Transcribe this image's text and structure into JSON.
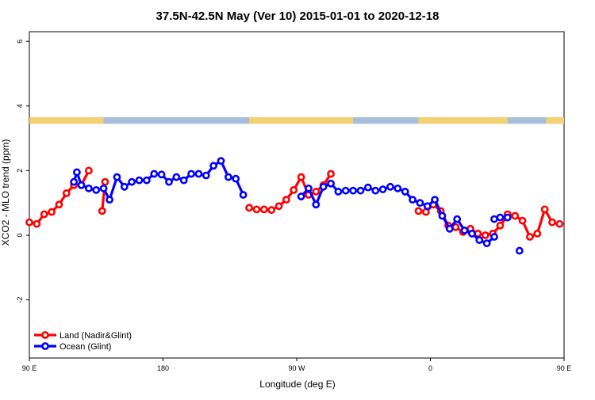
{
  "chart_data": {
    "type": "line",
    "title": "37.5N-42.5N May (Ver 10)   2015-01-01 to 2020-12-18",
    "xlabel": "Longitude (deg E)",
    "ylabel": "XCO2 - MLO trend (ppm)",
    "xlim": [
      90,
      450
    ],
    "ylim": [
      -3.8,
      6.3
    ],
    "x_ticks": [
      {
        "value": 90,
        "label": "90 E"
      },
      {
        "value": 180,
        "label": "180"
      },
      {
        "value": 270,
        "label": "90 W"
      },
      {
        "value": 360,
        "label": "0"
      },
      {
        "value": 450,
        "label": "90 E"
      },
      {
        "value": 540,
        "label": "180"
      }
    ],
    "y_ticks": [
      {
        "value": -2,
        "label": "-2"
      },
      {
        "value": 0,
        "label": "0"
      },
      {
        "value": 2,
        "label": "2"
      },
      {
        "value": 4,
        "label": "4"
      },
      {
        "value": 6,
        "label": "6"
      }
    ],
    "colors": {
      "land": "#ff0000",
      "ocean": "#0000ff",
      "map_land": "#f5d173",
      "map_ocean": "#a6bddb"
    },
    "legend": {
      "placement": "bottom-left"
    },
    "map_strip": {
      "y_range": [
        3.45,
        3.65
      ],
      "land_spans": [
        [
          90,
          140
        ],
        [
          238,
          308
        ],
        [
          352,
          412
        ],
        [
          438,
          498
        ],
        [
          508,
          528
        ]
      ]
    },
    "series": [
      {
        "name": "Land (Nadir&Glint)",
        "color": "#ff0000",
        "segments": [
          {
            "x": [
              90,
              95,
              100,
              105,
              110,
              115,
              120,
              125,
              130
            ],
            "y": [
              0.4,
              0.35,
              0.65,
              0.72,
              0.95,
              1.3,
              1.55,
              1.55,
              2.0
            ]
          },
          {
            "x": [
              139,
              141
            ],
            "y": [
              0.75,
              1.65
            ]
          },
          {
            "x": [
              238,
              243,
              248,
              253,
              258,
              263,
              268,
              273,
              278,
              283,
              288,
              293
            ],
            "y": [
              0.85,
              0.8,
              0.8,
              0.78,
              0.9,
              1.1,
              1.4,
              1.8,
              1.25,
              1.35,
              1.55,
              1.9
            ]
          },
          {
            "x": [
              352,
              357,
              362,
              367,
              372,
              377,
              382,
              387,
              392,
              397,
              402,
              407,
              412
            ],
            "y": [
              0.75,
              0.72,
              0.95,
              0.75,
              0.3,
              0.25,
              0.1,
              0.2,
              0.05,
              0.0,
              0.05,
              0.3,
              0.6
            ]
          },
          {
            "x": [
              412,
              417,
              422,
              427,
              432,
              437,
              442,
              447,
              452,
              457,
              462,
              467,
              472,
              477,
              482,
              487,
              492,
              497
            ],
            "y": [
              0.65,
              0.6,
              0.45,
              -0.05,
              0.05,
              0.8,
              0.4,
              0.35,
              0.35,
              0.65,
              0.75,
              0.95,
              1.3,
              1.55,
              2.0,
              1.55,
              0.75,
              1.65
            ]
          }
        ]
      },
      {
        "name": "Ocean (Glint)",
        "color": "#0000ff",
        "segments": [
          {
            "x": [
              120,
              122,
              125,
              130,
              135,
              140,
              144,
              149,
              154,
              159,
              164,
              169,
              174,
              179,
              184,
              189,
              194,
              199,
              204,
              209,
              214,
              219,
              224,
              229,
              234
            ],
            "y": [
              1.65,
              1.95,
              1.55,
              1.45,
              1.4,
              1.45,
              1.1,
              1.8,
              1.5,
              1.65,
              1.7,
              1.7,
              1.9,
              1.88,
              1.65,
              1.8,
              1.7,
              1.9,
              1.9,
              1.85,
              2.15,
              2.3,
              1.8,
              1.75,
              1.25
            ]
          },
          {
            "x": [
              273,
              278,
              283,
              288,
              293,
              298,
              303,
              308,
              313,
              318,
              323,
              328,
              333,
              338,
              343,
              348,
              353,
              358,
              363,
              368,
              373,
              378,
              383,
              388,
              393,
              398,
              403
            ],
            "y": [
              1.2,
              1.45,
              0.95,
              1.5,
              1.6,
              1.35,
              1.38,
              1.38,
              1.38,
              1.48,
              1.38,
              1.42,
              1.5,
              1.45,
              1.35,
              1.1,
              1.0,
              0.9,
              1.1,
              0.6,
              0.2,
              0.5,
              0.15,
              0.05,
              -0.15,
              -0.25,
              -0.05
            ]
          },
          {
            "x": [
              403,
              407,
              412
            ],
            "y": [
              0.5,
              0.55,
              0.55
            ]
          },
          {
            "x": [
              420
            ],
            "y": [
              -0.48
            ]
          },
          {
            "x": [
              477,
              480,
              484,
              488,
              493,
              497,
              502,
              507,
              512,
              517,
              522,
              527
            ],
            "y": [
              1.65,
              1.95,
              1.6,
              1.45,
              1.4,
              1.45,
              1.1,
              1.75,
              1.55,
              1.65,
              1.7,
              1.9
            ]
          }
        ]
      }
    ]
  }
}
